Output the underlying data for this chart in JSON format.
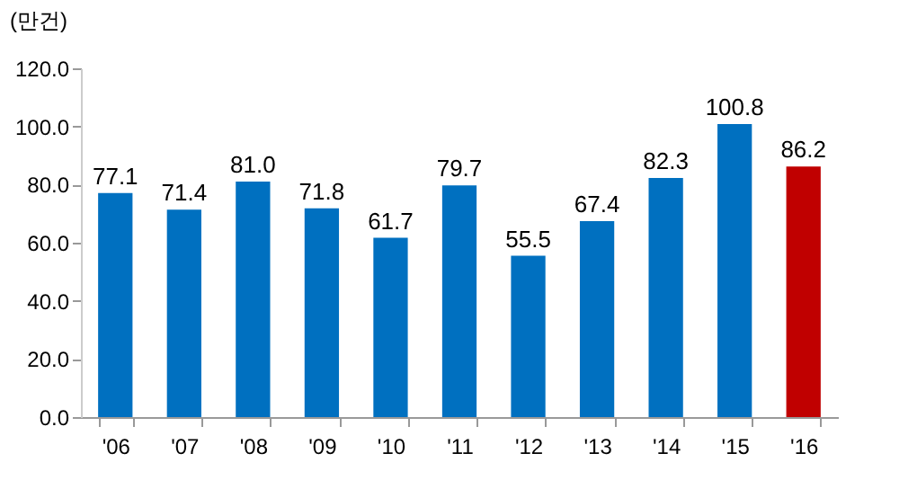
{
  "chart_data": {
    "type": "bar",
    "ylabel": "(만건)",
    "categories": [
      "'06",
      "'07",
      "'08",
      "'09",
      "'10",
      "'11",
      "'12",
      "'13",
      "'14",
      "'15",
      "'16"
    ],
    "values": [
      77.1,
      71.4,
      81.0,
      71.8,
      61.7,
      79.7,
      55.5,
      67.4,
      82.3,
      100.8,
      86.2
    ],
    "colors": [
      "#0070c0",
      "#0070c0",
      "#0070c0",
      "#0070c0",
      "#0070c0",
      "#0070c0",
      "#0070c0",
      "#0070c0",
      "#0070c0",
      "#0070c0",
      "#c00000"
    ],
    "ylim": [
      0,
      120
    ],
    "yticks": [
      {
        "value": 0,
        "label": "0.0"
      },
      {
        "value": 20,
        "label": "20.0"
      },
      {
        "value": 40,
        "label": "40.0"
      },
      {
        "value": 60,
        "label": "60.0"
      },
      {
        "value": 80,
        "label": "80.0"
      },
      {
        "value": 100,
        "label": "100.0"
      },
      {
        "value": 120,
        "label": "120.0"
      }
    ],
    "value_labels": [
      "77.1",
      "71.4",
      "81.0",
      "71.8",
      "61.7",
      "79.7",
      "55.5",
      "67.4",
      "82.3",
      "100.8",
      "86.2"
    ]
  }
}
